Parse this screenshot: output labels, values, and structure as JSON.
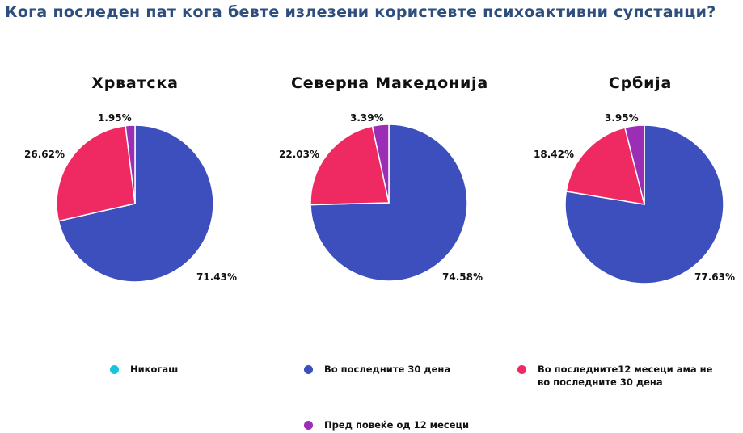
{
  "title": "Кога последен пат кога бевте излезени користевте психоактивни супстанци?",
  "chart_data": [
    {
      "type": "pie",
      "title": "Хрватска",
      "categories": [
        "Никогаш",
        "Во последните 30 дена",
        "Во последните12 месеци ама не во последните 30 дена",
        "Пред повеќе од 12 месеци"
      ],
      "values": [
        0,
        71.43,
        26.62,
        1.95
      ],
      "labels": [
        "",
        "71.43%",
        "26.62%",
        "1.95%"
      ]
    },
    {
      "type": "pie",
      "title": "Северна Македонија",
      "categories": [
        "Никогаш",
        "Во последните 30 дена",
        "Во последните12 месеци ама не во последните 30 дена",
        "Пред повеќе од 12 месеци"
      ],
      "values": [
        0,
        74.58,
        22.03,
        3.39
      ],
      "labels": [
        "",
        "74.58%",
        "22.03%",
        "3.39%"
      ]
    },
    {
      "type": "pie",
      "title": "Србија",
      "categories": [
        "Никогаш",
        "Во последните 30 дена",
        "Во последните12 месеци ама не во последните 30 дена",
        "Пред повеќе од 12 месеци"
      ],
      "values": [
        0,
        77.63,
        18.42,
        3.95
      ],
      "labels": [
        "",
        "77.63%",
        "18.42%",
        "3.95%"
      ]
    }
  ],
  "colors": {
    "never": "#1bc3d9",
    "last30": "#3d4fbd",
    "last12": "#ef2a63",
    "over12": "#9a2eb5",
    "title": "#2e4f7d"
  },
  "legend": [
    {
      "label": "Никогаш",
      "color": "#1bc3d9"
    },
    {
      "label": "Во последните 30 дена",
      "color": "#3d4fbd"
    },
    {
      "label": "Во последните12 месеци ама не во последните 30 дена",
      "color": "#ef2a63"
    },
    {
      "label": "Пред повеќе од 12 месеци",
      "color": "#9a2eb5"
    }
  ]
}
